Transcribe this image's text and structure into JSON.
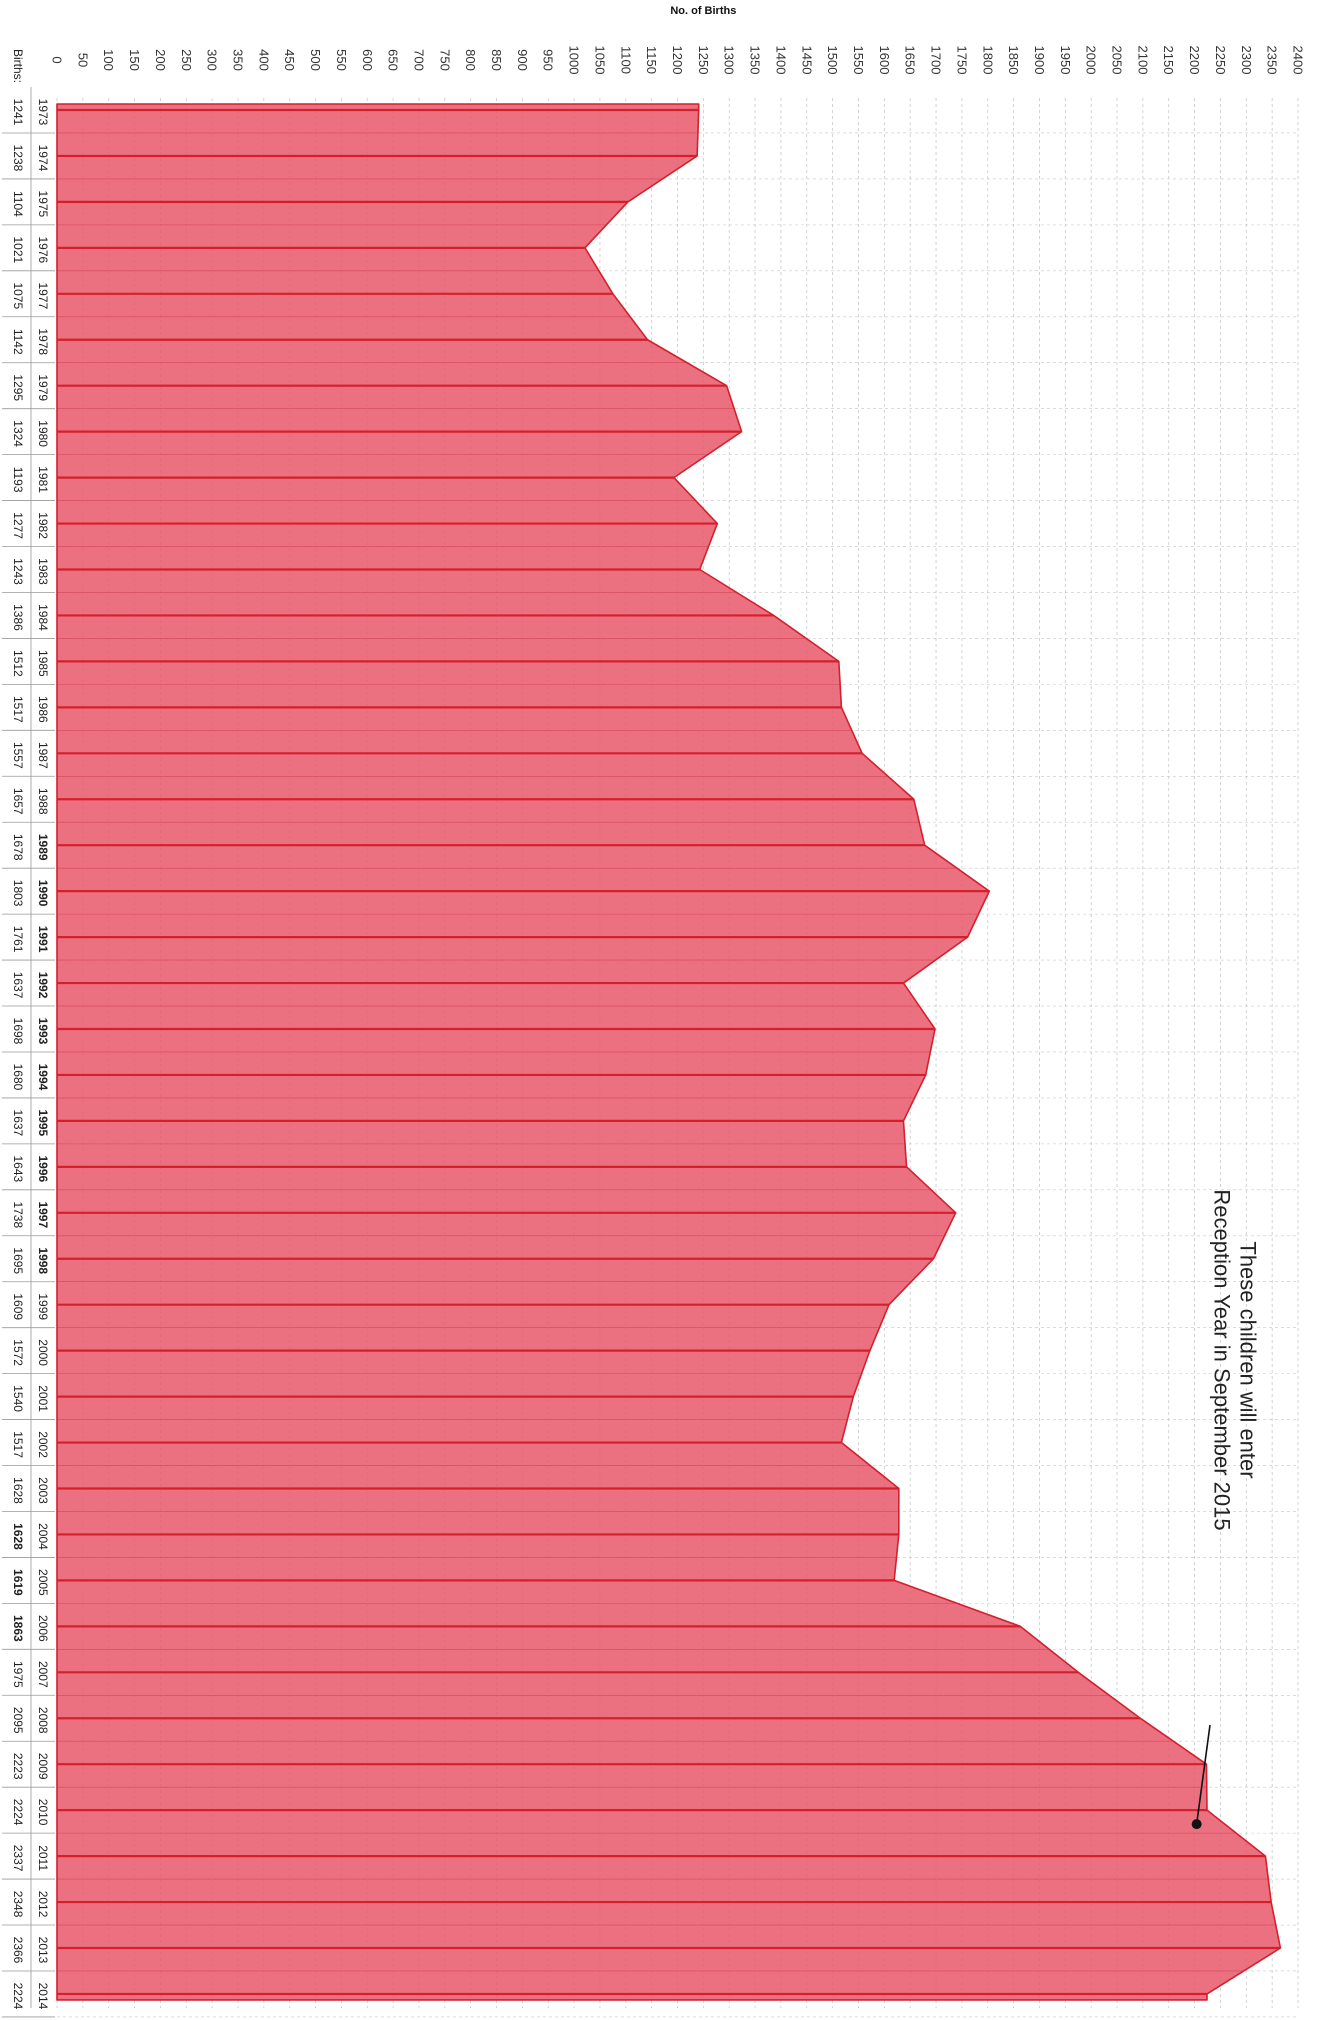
{
  "chart_data": {
    "type": "area",
    "orientation": "rotated",
    "axis_title": "No. of Births",
    "row_label": "Births:",
    "xlim": [
      0,
      2400
    ],
    "x_ticks": [
      0,
      50,
      100,
      150,
      200,
      250,
      300,
      350,
      400,
      450,
      500,
      550,
      600,
      650,
      700,
      750,
      800,
      850,
      900,
      950,
      1000,
      1050,
      1100,
      1150,
      1200,
      1250,
      1300,
      1350,
      1400,
      1450,
      1500,
      1550,
      1600,
      1650,
      1700,
      1750,
      1800,
      1850,
      1900,
      1950,
      2000,
      2050,
      2100,
      2150,
      2200,
      2250,
      2300,
      2350,
      2400
    ],
    "years": [
      "1973",
      "1974",
      "1975",
      "1976",
      "1977",
      "1978",
      "1979",
      "1980",
      "1981",
      "1982",
      "1983",
      "1984",
      "1985",
      "1986",
      "1987",
      "1988",
      "1989",
      "1990",
      "1991",
      "1992",
      "1993",
      "1994",
      "1995",
      "1996",
      "1997",
      "1998",
      "1999",
      "2000",
      "2001",
      "2002",
      "2003",
      "2004",
      "2005",
      "2006",
      "2007",
      "2008",
      "2009",
      "2010",
      "2011",
      "2012",
      "2013",
      "2014"
    ],
    "births": [
      1241,
      1238,
      1104,
      1021,
      1075,
      1142,
      1295,
      1324,
      1193,
      1277,
      1243,
      1386,
      1512,
      1517,
      1557,
      1657,
      1678,
      1803,
      1761,
      1637,
      1698,
      1680,
      1637,
      1643,
      1738,
      1695,
      1609,
      1572,
      1540,
      1517,
      1628,
      1628,
      1619,
      1863,
      1975,
      2095,
      2223,
      2224,
      2337,
      2348,
      2366,
      2224
    ],
    "bold_years": [
      "1989",
      "1990",
      "1991",
      "1992",
      "1993",
      "1994",
      "1995",
      "1996",
      "1997",
      "1998"
    ],
    "bold_births_years": [
      "2004",
      "2005",
      "2006"
    ],
    "annotation": {
      "lines": [
        "These children will enter",
        "Reception Year in September 2015"
      ],
      "target_year": "2010"
    },
    "grid": true,
    "fill_color": "#e8576a",
    "line_color": "#d4202d",
    "grid_color": "#c8c8c8"
  }
}
